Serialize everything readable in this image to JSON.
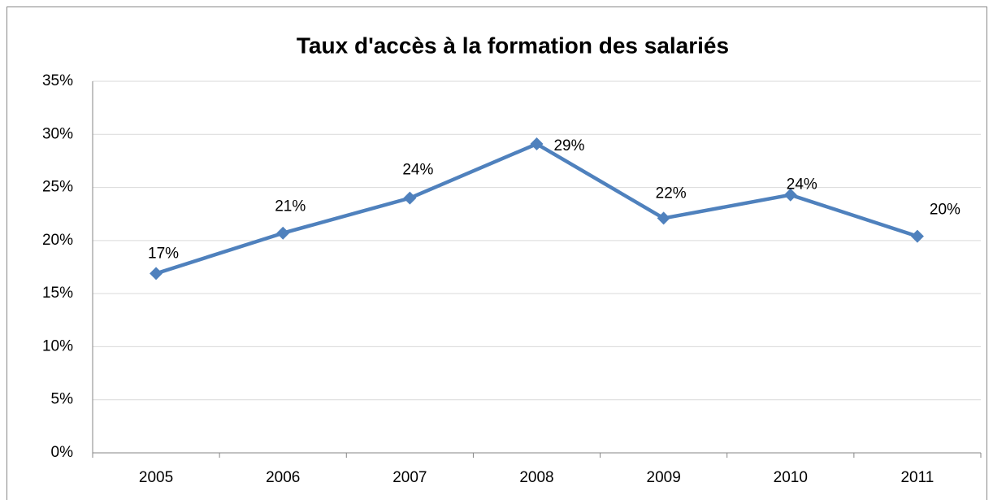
{
  "chart_data": {
    "type": "line",
    "title": "Taux d'accès à la formation des salariés",
    "categories": [
      "2005",
      "2006",
      "2007",
      "2008",
      "2009",
      "2010",
      "2011"
    ],
    "series": [
      {
        "name": "Taux d'accès",
        "color": "#4f81bd",
        "values": [
          16.9,
          20.7,
          24.0,
          29.1,
          22.1,
          24.3,
          20.4
        ],
        "value_labels": [
          "17%",
          "21%",
          "24%",
          "29%",
          "22%",
          "24%",
          "20%"
        ]
      }
    ],
    "ylim": [
      0,
      35
    ],
    "yticks": [
      {
        "value": 0,
        "label": "0%"
      },
      {
        "value": 5,
        "label": "5%"
      },
      {
        "value": 10,
        "label": "10%"
      },
      {
        "value": 15,
        "label": "15%"
      },
      {
        "value": 20,
        "label": "20%"
      },
      {
        "value": 25,
        "label": "25%"
      },
      {
        "value": 30,
        "label": "30%"
      },
      {
        "value": 35,
        "label": "35%"
      }
    ],
    "grid": true
  }
}
